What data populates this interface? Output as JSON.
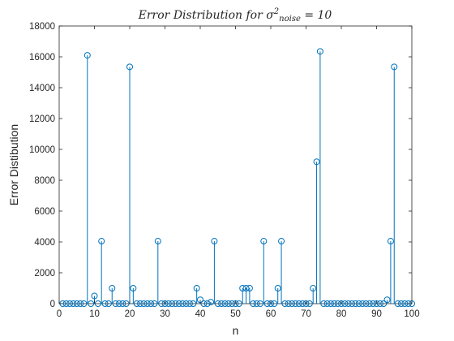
{
  "chart_data": {
    "type": "stem",
    "title": {
      "prefix": "Error Distribution for σ",
      "sup": "2",
      "sub": "noise",
      "suffix": " = 10"
    },
    "xlabel": "n",
    "ylabel": "Error Distibution",
    "xlim": [
      0,
      100
    ],
    "ylim": [
      0,
      18000
    ],
    "xticks": [
      0,
      10,
      20,
      30,
      40,
      50,
      60,
      70,
      80,
      90,
      100
    ],
    "yticks": [
      0,
      2000,
      4000,
      6000,
      8000,
      10000,
      12000,
      14000,
      16000,
      18000
    ],
    "grid": false,
    "color": "#0072BD",
    "x": [
      1,
      2,
      3,
      4,
      5,
      6,
      7,
      8,
      9,
      10,
      11,
      12,
      13,
      14,
      15,
      16,
      17,
      18,
      19,
      20,
      21,
      22,
      23,
      24,
      25,
      26,
      27,
      28,
      29,
      30,
      31,
      32,
      33,
      34,
      35,
      36,
      37,
      38,
      39,
      40,
      41,
      42,
      43,
      44,
      45,
      46,
      47,
      48,
      49,
      50,
      51,
      52,
      53,
      54,
      55,
      56,
      57,
      58,
      59,
      60,
      61,
      62,
      63,
      64,
      65,
      66,
      67,
      68,
      69,
      70,
      71,
      72,
      73,
      74,
      75,
      76,
      77,
      78,
      79,
      80,
      81,
      82,
      83,
      84,
      85,
      86,
      87,
      88,
      89,
      90,
      91,
      92,
      93,
      94,
      95,
      96,
      97,
      98,
      99,
      100
    ],
    "y": [
      0,
      0,
      0,
      0,
      0,
      0,
      0,
      16100,
      0,
      500,
      0,
      4050,
      0,
      0,
      1000,
      0,
      0,
      0,
      0,
      15350,
      1000,
      0,
      0,
      0,
      0,
      0,
      0,
      4050,
      0,
      0,
      0,
      0,
      0,
      0,
      0,
      0,
      0,
      0,
      1000,
      250,
      0,
      0,
      100,
      4050,
      0,
      0,
      0,
      0,
      0,
      0,
      0,
      1000,
      1000,
      1000,
      0,
      0,
      0,
      4050,
      0,
      0,
      0,
      1000,
      4050,
      0,
      0,
      0,
      0,
      0,
      0,
      0,
      0,
      1000,
      9200,
      16350,
      0,
      0,
      0,
      0,
      0,
      0,
      0,
      0,
      0,
      0,
      0,
      0,
      0,
      0,
      0,
      0,
      0,
      0,
      250,
      4050,
      15350,
      0,
      0,
      0,
      0,
      0
    ]
  }
}
